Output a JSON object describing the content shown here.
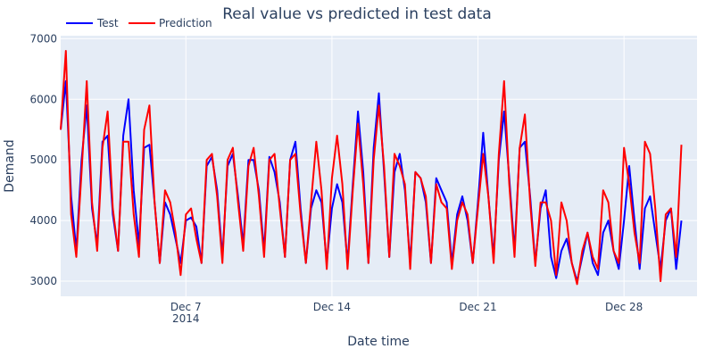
{
  "chart_data": {
    "type": "line",
    "title": "Real value vs predicted in test data",
    "xlabel": "Date time",
    "ylabel": "Demand",
    "x_range": [
      "2014-12-01T00:00",
      "2014-12-31T12:00"
    ],
    "ylim": [
      2750,
      7050
    ],
    "x_ticks": [
      {
        "date": "2014-12-07",
        "label": "Dec 7",
        "sublabel": "2014"
      },
      {
        "date": "2014-12-14",
        "label": "Dec 14",
        "sublabel": ""
      },
      {
        "date": "2014-12-21",
        "label": "Dec 21",
        "sublabel": ""
      },
      {
        "date": "2014-12-28",
        "label": "Dec 28",
        "sublabel": ""
      }
    ],
    "y_ticks": [
      3000,
      4000,
      5000,
      6000,
      7000
    ],
    "y_tick_labels": [
      "3000",
      "4000",
      "5000",
      "6000",
      "7000"
    ],
    "grid": true,
    "legend": "top-left, horizontal",
    "sampling_hours": 6,
    "series": [
      {
        "name": "Test",
        "color": "#0000ff",
        "values": [
          5500,
          6300,
          4400,
          3500,
          5000,
          5900,
          4200,
          3600,
          5300,
          5400,
          4100,
          3500,
          5400,
          6000,
          4500,
          3600,
          5200,
          5250,
          4300,
          3300,
          4300,
          4100,
          3700,
          3300,
          4000,
          4050,
          3900,
          3300,
          4900,
          5050,
          4500,
          3400,
          4900,
          5100,
          4400,
          3600,
          5000,
          5000,
          4500,
          3500,
          5050,
          4800,
          4300,
          3400,
          5000,
          5300,
          4200,
          3300,
          4200,
          4500,
          4300,
          3300,
          4200,
          4600,
          4300,
          3300,
          4600,
          5800,
          4800,
          3300,
          5200,
          6100,
          4800,
          3400,
          4800,
          5100,
          4500,
          3300,
          4800,
          4700,
          4300,
          3300,
          4700,
          4500,
          4300,
          3300,
          4100,
          4400,
          4000,
          3300,
          4300,
          5450,
          4400,
          3400,
          5000,
          5800,
          4700,
          3500,
          5200,
          5300,
          4400,
          3300,
          4200,
          4500,
          3400,
          3050,
          3500,
          3700,
          3300,
          3000,
          3400,
          3800,
          3300,
          3100,
          3800,
          4000,
          3500,
          3200,
          4000,
          4900,
          4000,
          3200,
          4200,
          4400,
          3800,
          3200,
          4000,
          4200,
          3200,
          4000
        ]
      },
      {
        "name": "Prediction",
        "color": "#ff0000",
        "values": [
          5500,
          6800,
          4100,
          3400,
          4800,
          6300,
          4300,
          3500,
          5200,
          5800,
          4200,
          3500,
          5300,
          5300,
          4100,
          3400,
          5500,
          5900,
          4300,
          3300,
          4500,
          4300,
          3800,
          3100,
          4100,
          4200,
          3700,
          3300,
          5000,
          5100,
          4400,
          3300,
          5000,
          5200,
          4300,
          3500,
          4900,
          5200,
          4400,
          3400,
          5000,
          5100,
          4200,
          3400,
          5000,
          5100,
          4100,
          3300,
          4300,
          5300,
          4500,
          3200,
          4700,
          5400,
          4600,
          3200,
          4500,
          5600,
          4600,
          3300,
          5000,
          5900,
          4900,
          3400,
          5100,
          4900,
          4600,
          3200,
          4800,
          4700,
          4400,
          3300,
          4600,
          4300,
          4200,
          3200,
          4000,
          4300,
          4100,
          3300,
          4200,
          5100,
          4400,
          3300,
          5100,
          6300,
          4600,
          3400,
          5200,
          5750,
          4300,
          3250,
          4300,
          4300,
          4000,
          3100,
          4300,
          4000,
          3300,
          2950,
          3500,
          3800,
          3400,
          3200,
          4500,
          4300,
          3500,
          3300,
          5200,
          4600,
          3800,
          3300,
          5300,
          5100,
          4200,
          3000,
          4100,
          4200,
          3400,
          5250
        ]
      }
    ]
  }
}
